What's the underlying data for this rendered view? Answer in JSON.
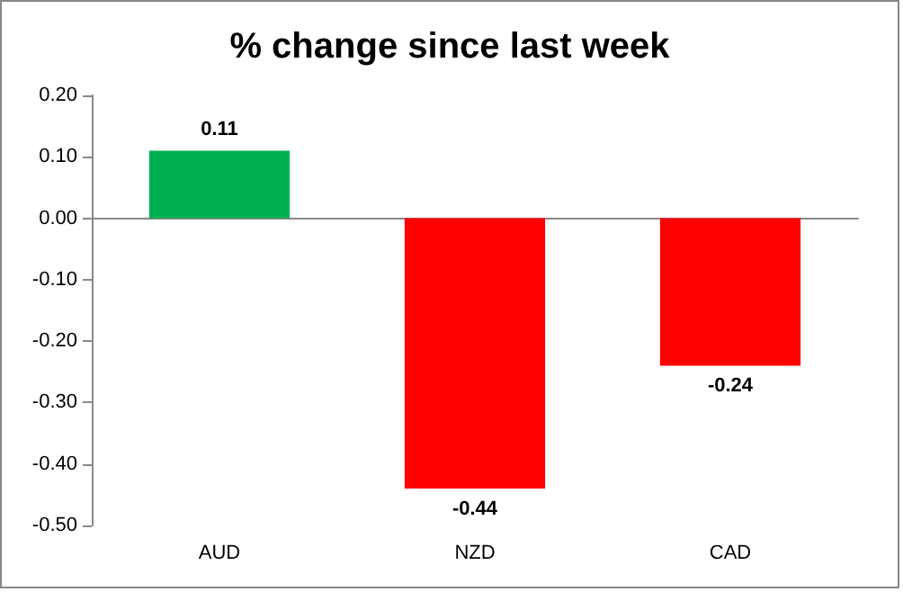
{
  "chart_data": {
    "type": "bar",
    "title": "% change since last week",
    "categories": [
      "AUD",
      "NZD",
      "CAD"
    ],
    "values": [
      0.11,
      -0.44,
      -0.24
    ],
    "colors": [
      "#00b050",
      "#ff0000",
      "#ff0000"
    ],
    "ylim": [
      -0.5,
      0.2
    ],
    "yticks": [
      {
        "value": -0.5,
        "label": "-0.50"
      },
      {
        "value": -0.4,
        "label": "-0.40"
      },
      {
        "value": -0.3,
        "label": "-0.30"
      },
      {
        "value": -0.2,
        "label": "-0.20"
      },
      {
        "value": -0.1,
        "label": "-0.10"
      },
      {
        "value": 0,
        "label": "0.00"
      },
      {
        "value": 0.1,
        "label": "0.10"
      },
      {
        "value": 0.2,
        "label": "0.20"
      }
    ],
    "data_labels": true
  }
}
